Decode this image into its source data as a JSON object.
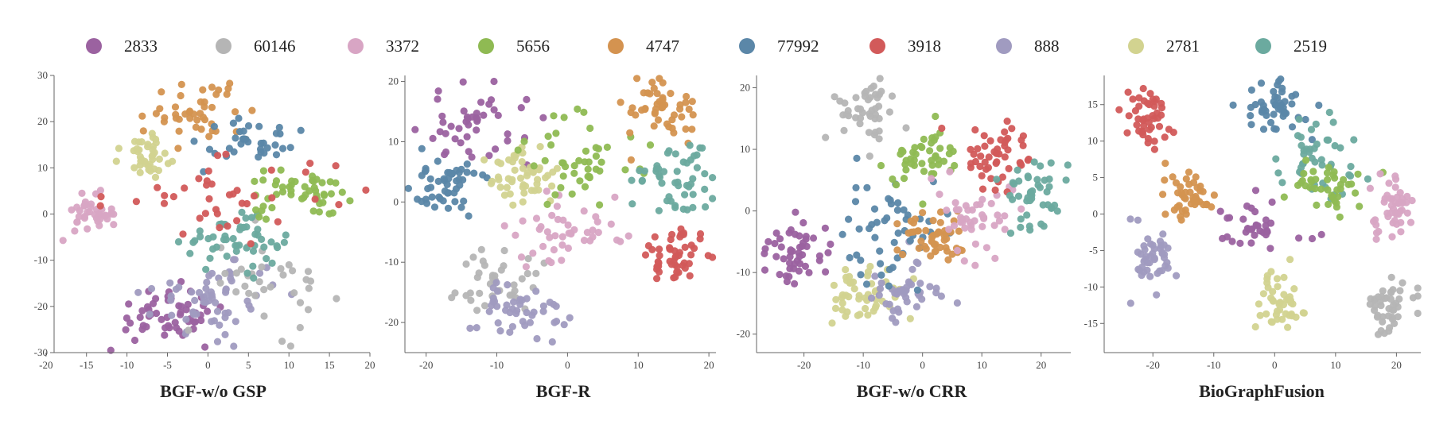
{
  "legend": [
    {
      "label": "2833",
      "color": "#9B62A0"
    },
    {
      "label": "60146",
      "color": "#B5B5B5"
    },
    {
      "label": "3372",
      "color": "#D8A5C4"
    },
    {
      "label": "5656",
      "color": "#8FBA53"
    },
    {
      "label": "4747",
      "color": "#D49350"
    },
    {
      "label": "77992",
      "color": "#5B87A8"
    },
    {
      "label": "3918",
      "color": "#D25A5A"
    },
    {
      "label": "888",
      "color": "#A09BC0"
    },
    {
      "label": "2781",
      "color": "#D2D390"
    },
    {
      "label": "2519",
      "color": "#6BAA9F"
    }
  ],
  "chart_data": [
    {
      "type": "scatter",
      "title": "BGF-w/o GSP",
      "xlim": [
        -19,
        20
      ],
      "ylim": [
        -30,
        30
      ],
      "xticks": [
        -20,
        -15,
        -10,
        -5,
        0,
        5,
        10,
        15,
        20
      ],
      "yticks": [
        -30,
        -20,
        -10,
        0,
        10,
        20,
        30
      ],
      "clusters": [
        {
          "series": "2833",
          "cx": -5,
          "cy": -22,
          "sx": 3.5,
          "sy": 3,
          "n": 55
        },
        {
          "series": "888",
          "cx": 1,
          "cy": -18,
          "sx": 4,
          "sy": 4,
          "n": 60
        },
        {
          "series": "60146",
          "cx": 8,
          "cy": -15,
          "sx": 4,
          "sy": 5,
          "n": 35
        },
        {
          "series": "2519",
          "cx": 3,
          "cy": -6,
          "sx": 3,
          "sy": 2.5,
          "n": 50
        },
        {
          "series": "3372",
          "cx": -14,
          "cy": 0,
          "sx": 2,
          "sy": 2,
          "n": 40
        },
        {
          "series": "5656",
          "cx": 11,
          "cy": 4,
          "sx": 3,
          "sy": 2.5,
          "n": 50
        },
        {
          "series": "2781",
          "cx": -7,
          "cy": 13,
          "sx": 2.5,
          "sy": 2.5,
          "n": 40
        },
        {
          "series": "4747",
          "cx": -1,
          "cy": 22,
          "sx": 3,
          "sy": 3,
          "n": 45
        },
        {
          "series": "77992",
          "cx": 5,
          "cy": 16,
          "sx": 3,
          "sy": 3,
          "n": 35
        },
        {
          "series": "3918",
          "cx": 2,
          "cy": 4,
          "sx": 7,
          "sy": 4,
          "n": 40
        }
      ]
    },
    {
      "type": "scatter",
      "title": "BGF-R",
      "xlim": [
        -23,
        21
      ],
      "ylim": [
        -25,
        21
      ],
      "xticks": [
        -20,
        -10,
        0,
        10,
        20
      ],
      "yticks": [
        -20,
        -10,
        0,
        10,
        20
      ],
      "clusters": [
        {
          "series": "77992",
          "cx": -17,
          "cy": 3,
          "sx": 3,
          "sy": 3,
          "n": 50
        },
        {
          "series": "2833",
          "cx": -13,
          "cy": 12,
          "sx": 4,
          "sy": 3,
          "n": 45
        },
        {
          "series": "2781",
          "cx": -6,
          "cy": 4,
          "sx": 2.5,
          "sy": 2.5,
          "n": 50
        },
        {
          "series": "60146",
          "cx": -9,
          "cy": -13,
          "sx": 3,
          "sy": 3,
          "n": 40
        },
        {
          "series": "888",
          "cx": -7,
          "cy": -18,
          "sx": 3,
          "sy": 2.5,
          "n": 45
        },
        {
          "series": "3372",
          "cx": 0,
          "cy": -5,
          "sx": 4,
          "sy": 3,
          "n": 45
        },
        {
          "series": "5656",
          "cx": 2,
          "cy": 7,
          "sx": 4,
          "sy": 4,
          "n": 45
        },
        {
          "series": "4747",
          "cx": 13,
          "cy": 15,
          "sx": 2.5,
          "sy": 3,
          "n": 50
        },
        {
          "series": "2519",
          "cx": 15,
          "cy": 3,
          "sx": 3,
          "sy": 3,
          "n": 50
        },
        {
          "series": "3918",
          "cx": 15,
          "cy": -9,
          "sx": 2.5,
          "sy": 2.5,
          "n": 50
        }
      ]
    },
    {
      "type": "scatter",
      "title": "BGF-w/o CRR",
      "xlim": [
        -28,
        25
      ],
      "ylim": [
        -23,
        22
      ],
      "xticks": [
        -20,
        -10,
        0,
        10,
        20
      ],
      "yticks": [
        -20,
        -10,
        0,
        10,
        20
      ],
      "clusters": [
        {
          "series": "60146",
          "cx": -10,
          "cy": 16,
          "sx": 2.5,
          "sy": 2.5,
          "n": 45
        },
        {
          "series": "2833",
          "cx": -22,
          "cy": -7,
          "sx": 2.5,
          "sy": 2.5,
          "n": 50
        },
        {
          "series": "2781",
          "cx": -10,
          "cy": -14,
          "sx": 3,
          "sy": 2.5,
          "n": 50
        },
        {
          "series": "888",
          "cx": -3,
          "cy": -14,
          "sx": 3,
          "sy": 3,
          "n": 45
        },
        {
          "series": "77992",
          "cx": -6,
          "cy": -2,
          "sx": 5,
          "sy": 5,
          "n": 50
        },
        {
          "series": "5656",
          "cx": 0,
          "cy": 8,
          "sx": 3,
          "sy": 3,
          "n": 45
        },
        {
          "series": "4747",
          "cx": 2,
          "cy": -5,
          "sx": 3,
          "sy": 2.5,
          "n": 50
        },
        {
          "series": "3372",
          "cx": 8,
          "cy": 0,
          "sx": 4,
          "sy": 4,
          "n": 45
        },
        {
          "series": "3918",
          "cx": 13,
          "cy": 9,
          "sx": 3,
          "sy": 2.5,
          "n": 50
        },
        {
          "series": "2519",
          "cx": 18,
          "cy": 3,
          "sx": 3,
          "sy": 3,
          "n": 45
        }
      ]
    },
    {
      "type": "scatter",
      "title": "BioGraphFusion",
      "xlim": [
        -28,
        24
      ],
      "ylim": [
        -19,
        19
      ],
      "xticks": [
        -20,
        -10,
        0,
        10,
        20
      ],
      "yticks": [
        -15,
        -10,
        -5,
        0,
        5,
        10,
        15
      ],
      "clusters": [
        {
          "series": "3918",
          "cx": -21,
          "cy": 13,
          "sx": 2,
          "sy": 2,
          "n": 45
        },
        {
          "series": "4747",
          "cx": -14,
          "cy": 2,
          "sx": 2,
          "sy": 2,
          "n": 45
        },
        {
          "series": "888",
          "cx": -20,
          "cy": -6,
          "sx": 2,
          "sy": 2,
          "n": 45
        },
        {
          "series": "77992",
          "cx": 0,
          "cy": 15,
          "sx": 2.5,
          "sy": 2,
          "n": 50
        },
        {
          "series": "2519",
          "cx": 8,
          "cy": 8,
          "sx": 3,
          "sy": 3,
          "n": 45
        },
        {
          "series": "5656",
          "cx": 9,
          "cy": 4,
          "sx": 3,
          "sy": 2,
          "n": 40
        },
        {
          "series": "3372",
          "cx": 19,
          "cy": 1,
          "sx": 2,
          "sy": 2,
          "n": 45
        },
        {
          "series": "2833",
          "cx": -3,
          "cy": -2,
          "sx": 3,
          "sy": 2,
          "n": 35
        },
        {
          "series": "2781",
          "cx": 1,
          "cy": -12,
          "sx": 2,
          "sy": 2,
          "n": 45
        },
        {
          "series": "60146",
          "cx": 19,
          "cy": -13,
          "sx": 2,
          "sy": 2,
          "n": 45
        }
      ]
    }
  ]
}
